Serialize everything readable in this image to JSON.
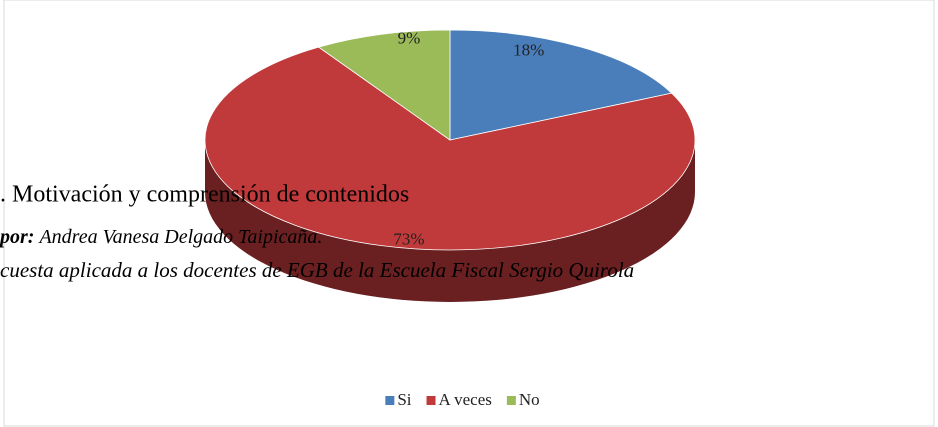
{
  "chart_data": {
    "type": "pie3d",
    "categories": [
      "Si",
      "A veces",
      "No"
    ],
    "values": [
      18,
      73,
      9
    ],
    "value_labels": [
      "18%",
      "73%",
      "9%"
    ],
    "colors": [
      "#4a7ebb",
      "#c0393b",
      "#9bbb59"
    ],
    "legend": "bottom",
    "annotations": [
      ". Motivación y comprensión de contenidos",
      "por:",
      "Andrea Vanesa Delgado Taipicaña.",
      "cuesta aplicada a los docentes de EGB de la Escuela Fiscal Sergio Quirola"
    ]
  }
}
